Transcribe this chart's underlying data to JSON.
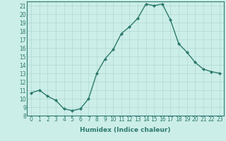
{
  "x": [
    0,
    1,
    2,
    3,
    4,
    5,
    6,
    7,
    8,
    9,
    10,
    11,
    12,
    13,
    14,
    15,
    16,
    17,
    18,
    19,
    20,
    21,
    22,
    23
  ],
  "y": [
    10.7,
    11.0,
    10.3,
    9.8,
    8.8,
    8.6,
    8.8,
    10.0,
    13.0,
    14.7,
    15.8,
    17.7,
    18.5,
    19.5,
    21.2,
    21.0,
    21.2,
    19.3,
    16.5,
    15.5,
    14.3,
    13.5,
    13.2,
    13.0
  ],
  "line_color": "#2d7a6e",
  "bg_color": "#cceee8",
  "grid_color": "#b0d8d2",
  "xlabel": "Humidex (Indice chaleur)",
  "xlim": [
    -0.5,
    23.5
  ],
  "ylim": [
    8,
    21.5
  ],
  "yticks": [
    8,
    9,
    10,
    11,
    12,
    13,
    14,
    15,
    16,
    17,
    18,
    19,
    20,
    21
  ],
  "xticks": [
    0,
    1,
    2,
    3,
    4,
    5,
    6,
    7,
    8,
    9,
    10,
    11,
    12,
    13,
    14,
    15,
    16,
    17,
    18,
    19,
    20,
    21,
    22,
    23
  ],
  "marker": "D",
  "marker_size": 2.0,
  "line_width": 1.0,
  "xlabel_fontsize": 6.5,
  "tick_fontsize": 5.5
}
